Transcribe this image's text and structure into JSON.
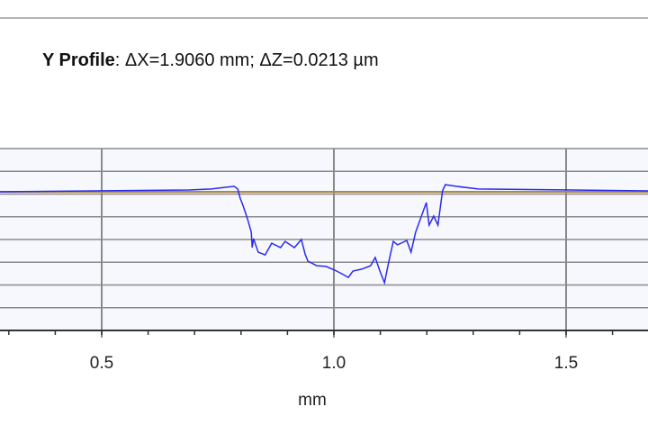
{
  "header": {
    "title_bold": "Y Profile",
    "title_rest": ": ΔX=1.9060 mm; ΔZ=0.0213 µm"
  },
  "chart_data": {
    "type": "line",
    "title": "Y Profile: ΔX=1.9060 mm; ΔZ=0.0213 µm",
    "xlabel": "mm",
    "ylabel": "",
    "xlim": [
      0.28,
      1.68
    ],
    "x_ticks": [
      0.5,
      1.0,
      1.5
    ],
    "x_tick_labels": [
      "0.5",
      "1.0",
      "1.5"
    ],
    "x_minor_step": 0.1,
    "y_grid_lines": 8,
    "grid": true,
    "reference_line_z": 0,
    "colors": {
      "profile": "#2b2bf0",
      "reference": "#b0864a",
      "plot_bg": "#f6f8fd",
      "grid": "#8a8a8a"
    },
    "series": [
      {
        "x": [
          0.281,
          0.688,
          0.736,
          0.785,
          0.793,
          0.798,
          0.804,
          0.814,
          0.822,
          0.824,
          0.827,
          0.837,
          0.852,
          0.866,
          0.885,
          0.895,
          0.915,
          0.93,
          0.938,
          0.944,
          0.963,
          0.983,
          1.002,
          1.021,
          1.031,
          1.041,
          1.06,
          1.079,
          1.089,
          1.099,
          1.109,
          1.118,
          1.128,
          1.137,
          1.157,
          1.166,
          1.176,
          1.199,
          1.205,
          1.215,
          1.224,
          1.234,
          1.24,
          1.263,
          1.311,
          1.68
        ],
        "z": [
          0.0,
          0.08,
          0.12,
          0.24,
          0.12,
          -0.27,
          -0.59,
          -1.18,
          -1.76,
          -2.43,
          -2.04,
          -2.63,
          -2.75,
          -2.24,
          -2.43,
          -2.16,
          -2.43,
          -2.08,
          -2.71,
          -3.02,
          -3.22,
          -3.25,
          -3.41,
          -3.61,
          -3.73,
          -3.45,
          -3.37,
          -3.22,
          -2.86,
          -3.45,
          -3.96,
          -3.06,
          -2.16,
          -2.31,
          -2.12,
          -2.63,
          -1.76,
          -0.47,
          -1.45,
          -1.06,
          -1.45,
          0.04,
          0.31,
          0.24,
          0.12,
          0.04
        ]
      }
    ]
  }
}
